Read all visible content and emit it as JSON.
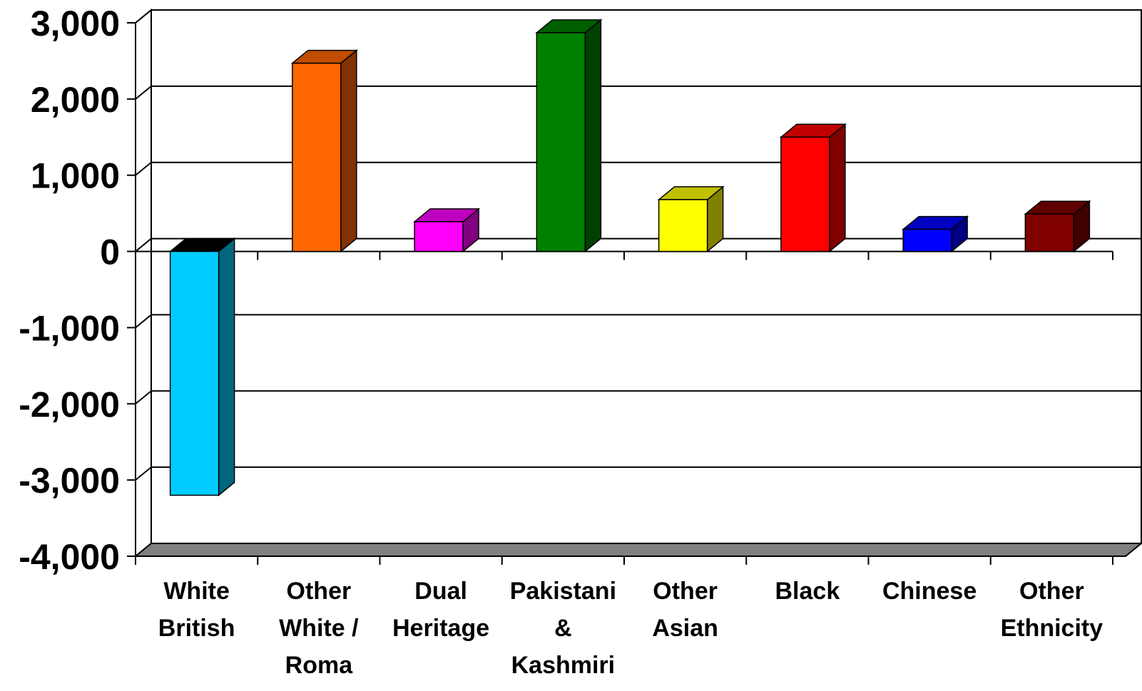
{
  "chart_data": {
    "type": "bar",
    "style": "3d-column",
    "categories": [
      [
        "White",
        "British"
      ],
      [
        "Other",
        "White /",
        "Roma"
      ],
      [
        "Dual",
        "Heritage"
      ],
      [
        "Pakistani",
        "&",
        "Kashmiri"
      ],
      [
        "Other",
        "Asian"
      ],
      [
        "Black"
      ],
      [
        "Chinese"
      ],
      [
        "Other",
        "Ethnicity"
      ]
    ],
    "values": [
      -3200,
      2470,
      390,
      2870,
      680,
      1500,
      290,
      490
    ],
    "colors": {
      "front": [
        "#00CCFF",
        "#FF6600",
        "#FF00FF",
        "#008000",
        "#FFFF00",
        "#FF0000",
        "#0000FF",
        "#800000"
      ],
      "top": [
        "#000000",
        "#C04D00",
        "#C000C0",
        "#006000",
        "#C0C000",
        "#C00000",
        "#0000C0",
        "#600000"
      ],
      "side": [
        "#006680",
        "#803300",
        "#800080",
        "#004000",
        "#808000",
        "#800000",
        "#000080",
        "#400000"
      ]
    },
    "ylim": [
      -4000,
      3000
    ],
    "yticks": [
      {
        "value": 3000,
        "label": "3,000"
      },
      {
        "value": 2000,
        "label": "2,000"
      },
      {
        "value": 1000,
        "label": "1,000"
      },
      {
        "value": 0,
        "label": "0"
      },
      {
        "value": -1000,
        "label": "-1,000"
      },
      {
        "value": -2000,
        "label": "-2,000"
      },
      {
        "value": -3000,
        "label": "-3,000"
      },
      {
        "value": -4000,
        "label": "-4,000"
      }
    ],
    "grid": true,
    "floor_color": "#808080",
    "title": "",
    "xlabel": "",
    "ylabel": ""
  }
}
